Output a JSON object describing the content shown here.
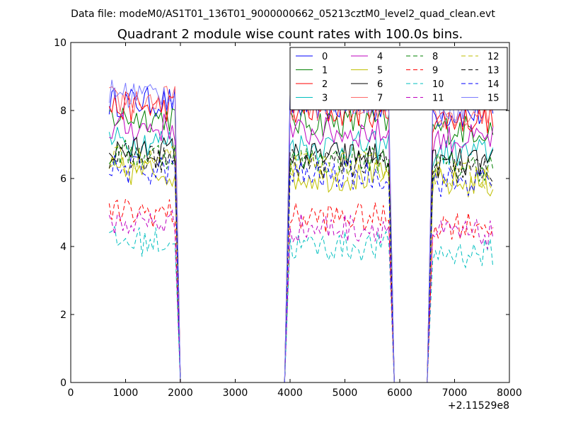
{
  "figure": {
    "suptitle": "Data file: modeM0/AS1T01_136T01_9000000662_05213cztM0_level2_quad_clean.evt",
    "x_offset_label": "+2.11529e8"
  },
  "chart_data": {
    "type": "line",
    "title": "Quadrant 2 module wise count rates with 100.0s bins.",
    "xlabel": "",
    "ylabel": "",
    "xlim": [
      0,
      8000
    ],
    "ylim": [
      0,
      10
    ],
    "x_ticks": [
      0,
      1000,
      2000,
      3000,
      4000,
      5000,
      6000,
      7000,
      8000
    ],
    "y_ticks": [
      0,
      2,
      4,
      6,
      8,
      10
    ],
    "grid": false,
    "legend_position": "top-right",
    "legend_columns": 4,
    "segments": [
      {
        "start": 700,
        "end": 1900,
        "drop_to": 2000
      },
      {
        "start": 4000,
        "end": 5800,
        "rise_from": 3900,
        "drop_to": 5900
      },
      {
        "start": 6600,
        "end": 7700,
        "rise_from": 6500
      }
    ],
    "zero_ranges": [
      [
        2000,
        3900
      ],
      [
        5900,
        6500
      ]
    ],
    "series": [
      {
        "name": "0",
        "color": "#0000ff",
        "dash": "solid",
        "base": 8.25
      },
      {
        "name": "1",
        "color": "#008000",
        "dash": "solid",
        "base": 7.8
      },
      {
        "name": "2",
        "color": "#ff0000",
        "dash": "solid",
        "base": 8.1
      },
      {
        "name": "3",
        "color": "#00bfbf",
        "dash": "solid",
        "base": 7.1
      },
      {
        "name": "4",
        "color": "#bf00bf",
        "dash": "solid",
        "base": 7.5
      },
      {
        "name": "5",
        "color": "#bfbf00",
        "dash": "solid",
        "base": 6.2
      },
      {
        "name": "6",
        "color": "#000000",
        "dash": "solid",
        "base": 6.8
      },
      {
        "name": "7",
        "color": "#ff6a6a",
        "dash": "solid",
        "base": 8.3
      },
      {
        "name": "8",
        "color": "#008000",
        "dash": "dashed",
        "base": 6.7
      },
      {
        "name": "9",
        "color": "#ff0000",
        "dash": "dashed",
        "base": 5.0
      },
      {
        "name": "10",
        "color": "#00bfbf",
        "dash": "dashed",
        "base": 4.15
      },
      {
        "name": "11",
        "color": "#bf00bf",
        "dash": "dashed",
        "base": 4.7
      },
      {
        "name": "12",
        "color": "#bfbf00",
        "dash": "dashed",
        "base": 6.5
      },
      {
        "name": "13",
        "color": "#000000",
        "dash": "dashed",
        "base": 6.6
      },
      {
        "name": "14",
        "color": "#0000ff",
        "dash": "dashed",
        "base": 6.25
      },
      {
        "name": "15",
        "color": "#7b7bff",
        "dash": "solid",
        "base": 8.5
      }
    ]
  }
}
